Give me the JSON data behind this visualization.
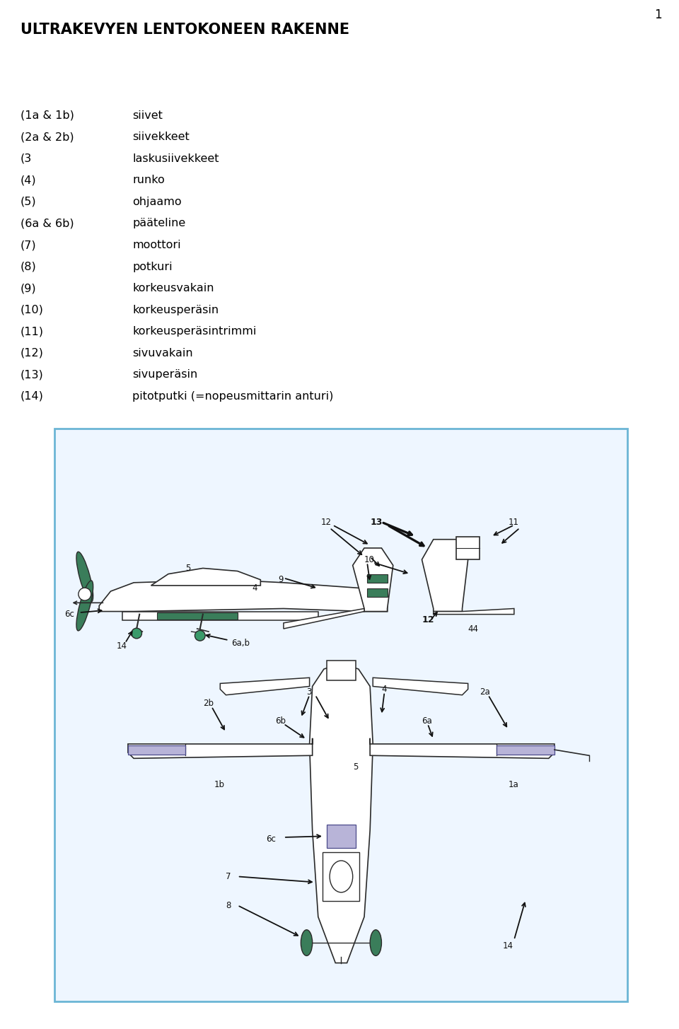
{
  "title": "ULTRAKEVYEN LENTOKONEEN RAKENNE",
  "page_number": "1",
  "background_color": "#ffffff",
  "box_border_color": "#6BB5D5",
  "text_color": "#000000",
  "legend_items": [
    [
      "(1a & 1b)",
      "siivet"
    ],
    [
      "(2a & 2b)",
      "siivekkeet"
    ],
    [
      "(3",
      "laskusiivekkeet"
    ],
    [
      "(4)",
      "runko"
    ],
    [
      "(5)",
      "ohjaamo"
    ],
    [
      "(6a & 6b)",
      "pääteline"
    ],
    [
      "(7)",
      "moottori"
    ],
    [
      "(8)",
      "potkuri"
    ],
    [
      "(9)",
      "korkeusvakain"
    ],
    [
      "(10)",
      "korkeusperäsin"
    ],
    [
      "(11)",
      "korkeusperäsintrimmi"
    ],
    [
      "(12)",
      "sivuvakain"
    ],
    [
      "(13)",
      "sivuperäsin"
    ],
    [
      "(14)",
      "pitotputki (=nopeusmittarin anturi)"
    ]
  ],
  "green_color": "#3A7D5A",
  "teal_color": "#3A9A6A",
  "lavender_color": "#B8B4D8",
  "diagram_bg": "#EEF6FF"
}
